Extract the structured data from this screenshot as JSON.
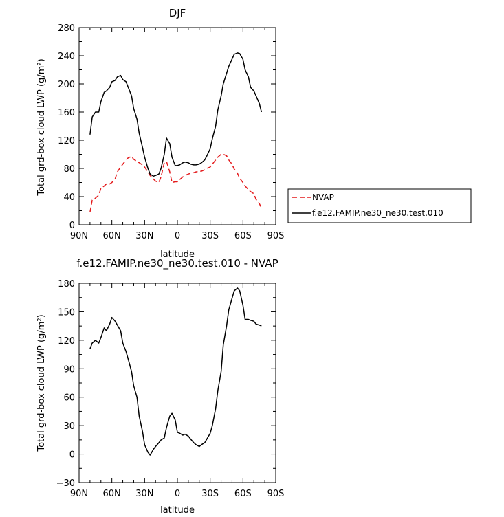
{
  "chart_data": [
    {
      "type": "line",
      "title": "DJF",
      "xlabel": "latitude",
      "ylabel": "Total grd-box cloud LWP (g/m²)",
      "xlim": [
        90,
        -90
      ],
      "ylim": [
        0,
        280
      ],
      "x_ticks": [
        90,
        60,
        30,
        0,
        -30,
        -60,
        -90
      ],
      "x_tick_labels": [
        "90N",
        "60N",
        "30N",
        "0",
        "30S",
        "60S",
        "90S"
      ],
      "y_ticks": [
        0,
        40,
        80,
        120,
        160,
        200,
        240,
        280
      ],
      "y_tick_labels": [
        "0",
        "40",
        "80",
        "120",
        "160",
        "200",
        "240",
        "280"
      ],
      "legend_position": "right",
      "series": [
        {
          "name": "NVAP",
          "color": "#e41a1c",
          "dash": "dashed",
          "x": [
            80,
            78,
            75,
            72,
            70,
            67,
            65,
            62,
            60,
            57,
            55,
            52,
            50,
            47,
            45,
            42,
            40,
            37,
            35,
            32,
            30,
            27,
            25,
            22,
            20,
            17,
            15,
            12,
            10,
            7,
            5,
            2,
            0,
            -2,
            -5,
            -7,
            -10,
            -12,
            -15,
            -17,
            -20,
            -22,
            -25,
            -27,
            -30,
            -32,
            -35,
            -37,
            -40,
            -42,
            -45,
            -47,
            -50,
            -52,
            -55,
            -57,
            -60,
            -62,
            -65,
            -67,
            -70,
            -72,
            -75,
            -77
          ],
          "values": [
            18,
            35,
            38,
            42,
            52,
            55,
            58,
            58,
            60,
            65,
            75,
            82,
            86,
            92,
            95,
            97,
            93,
            90,
            88,
            85,
            82,
            75,
            70,
            65,
            62,
            60,
            68,
            88,
            90,
            75,
            60,
            61,
            61,
            64,
            68,
            70,
            72,
            73,
            74,
            75,
            76,
            76,
            78,
            80,
            82,
            86,
            92,
            96,
            100,
            100,
            98,
            92,
            86,
            79,
            73,
            66,
            60,
            55,
            50,
            47,
            44,
            36,
            30,
            24
          ]
        },
        {
          "name": "f.e12.FAMIP.ne30_ne30.test.010",
          "color": "#000000",
          "dash": "solid",
          "x": [
            80,
            78,
            75,
            72,
            70,
            67,
            65,
            62,
            60,
            57,
            55,
            52,
            50,
            47,
            45,
            42,
            40,
            37,
            35,
            32,
            30,
            27,
            25,
            22,
            20,
            17,
            15,
            12,
            10,
            7,
            5,
            2,
            0,
            -2,
            -5,
            -7,
            -10,
            -12,
            -15,
            -17,
            -20,
            -22,
            -25,
            -27,
            -30,
            -32,
            -35,
            -37,
            -40,
            -42,
            -45,
            -47,
            -50,
            -52,
            -55,
            -57,
            -60,
            -62,
            -65,
            -67,
            -70,
            -72,
            -75,
            -77
          ],
          "values": [
            128,
            153,
            160,
            160,
            175,
            188,
            190,
            195,
            203,
            205,
            210,
            212,
            206,
            203,
            195,
            183,
            165,
            150,
            130,
            110,
            96,
            80,
            72,
            69,
            70,
            72,
            80,
            100,
            123,
            115,
            96,
            84,
            84,
            85,
            88,
            89,
            88,
            86,
            85,
            85,
            86,
            88,
            92,
            98,
            108,
            122,
            140,
            163,
            183,
            200,
            215,
            225,
            235,
            242,
            244,
            243,
            235,
            220,
            210,
            195,
            190,
            183,
            172,
            160
          ]
        }
      ]
    },
    {
      "type": "line",
      "title": "f.e12.FAMIP.ne30_ne30.test.010 - NVAP",
      "xlabel": "latitude",
      "ylabel": "Total grd-box cloud LWP (g/m²)",
      "xlim": [
        90,
        -90
      ],
      "ylim": [
        -30,
        180
      ],
      "x_ticks": [
        90,
        60,
        30,
        0,
        -30,
        -60,
        -90
      ],
      "x_tick_labels": [
        "90N",
        "60N",
        "30N",
        "0",
        "30S",
        "60S",
        "90S"
      ],
      "y_ticks": [
        -30,
        0,
        30,
        60,
        90,
        120,
        150,
        180
      ],
      "y_tick_labels": [
        "−30",
        "0",
        "30",
        "60",
        "90",
        "120",
        "150",
        "180"
      ],
      "series": [
        {
          "color": "#000000",
          "dash": "solid",
          "x": [
            80,
            78,
            75,
            72,
            70,
            67,
            65,
            62,
            60,
            57,
            55,
            52,
            50,
            47,
            45,
            42,
            40,
            37,
            35,
            32,
            30,
            27,
            25,
            22,
            20,
            17,
            15,
            12,
            10,
            7,
            5,
            2,
            0,
            -2,
            -5,
            -7,
            -10,
            -12,
            -15,
            -17,
            -20,
            -22,
            -25,
            -27,
            -30,
            -32,
            -35,
            -37,
            -40,
            -42,
            -45,
            -47,
            -50,
            -52,
            -55,
            -57,
            -60,
            -62,
            -65,
            -67,
            -70,
            -72,
            -75,
            -77
          ],
          "values": [
            111,
            117,
            120,
            117,
            123,
            133,
            130,
            137,
            144,
            140,
            136,
            130,
            117,
            108,
            100,
            87,
            72,
            60,
            40,
            24,
            10,
            2,
            -1,
            5,
            8,
            12,
            15,
            17,
            28,
            40,
            43,
            36,
            23,
            22,
            20,
            21,
            19,
            16,
            12,
            10,
            8,
            10,
            12,
            16,
            22,
            30,
            48,
            67,
            87,
            115,
            135,
            152,
            164,
            172,
            175,
            172,
            157,
            142,
            142,
            141,
            140,
            137,
            136,
            135
          ]
        }
      ]
    }
  ]
}
